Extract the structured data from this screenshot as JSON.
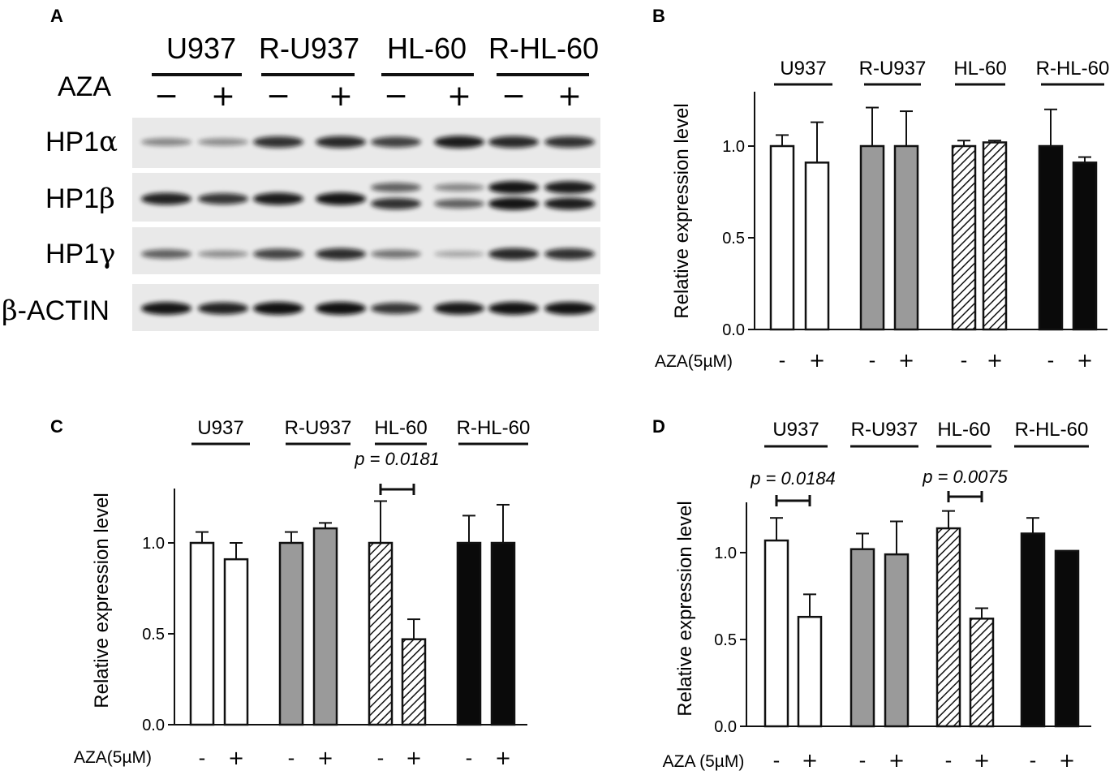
{
  "panel_letters": [
    "A",
    "B",
    "C",
    "D"
  ],
  "blot": {
    "groups": [
      "U937",
      "R-U937",
      "HL-60",
      "R-HL-60"
    ],
    "treatment_label": "AZA",
    "signs": [
      "−",
      "+",
      "−",
      "+",
      "−",
      "+",
      "−",
      "+"
    ],
    "rows": [
      {
        "label_base": "HP1",
        "label_greek": "α",
        "intensities": [
          [
            0.35
          ],
          [
            0.32
          ],
          [
            0.8
          ],
          [
            0.85
          ],
          [
            0.72
          ],
          [
            0.92
          ],
          [
            0.85
          ],
          [
            0.8
          ]
        ]
      },
      {
        "label_base": "HP1",
        "label_greek": "β",
        "intensities": [
          [
            0.88
          ],
          [
            0.78
          ],
          [
            0.92
          ],
          [
            0.95
          ],
          [
            0.55,
            0.8
          ],
          [
            0.35,
            0.55
          ],
          [
            0.95,
            0.95
          ],
          [
            0.92,
            0.9
          ]
        ]
      },
      {
        "label_base": "HP1",
        "label_greek": "γ",
        "intensities": [
          [
            0.55
          ],
          [
            0.3
          ],
          [
            0.7
          ],
          [
            0.82
          ],
          [
            0.45
          ],
          [
            0.18
          ],
          [
            0.85
          ],
          [
            0.8
          ]
        ]
      },
      {
        "label_base": "-ACTIN",
        "label_greek": "β",
        "intensities": [
          [
            0.95
          ],
          [
            0.88
          ],
          [
            0.98
          ],
          [
            0.98
          ],
          [
            0.78
          ],
          [
            0.93
          ],
          [
            0.97
          ],
          [
            0.96
          ]
        ]
      }
    ]
  },
  "chart_data": [
    {
      "panel": "B",
      "type": "bar",
      "ylabel": "Relative expression level",
      "ylim": [
        0,
        1.3
      ],
      "yticks": [
        "0.0",
        "0.5",
        "1.0"
      ],
      "groups": [
        "U937",
        "R-U937",
        "HL-60",
        "R-HL-60"
      ],
      "treatment_label": "AZA(5µM)",
      "treatment_signs": [
        "-",
        "+",
        "-",
        "+",
        "-",
        "+",
        "-",
        "+"
      ],
      "values": [
        1.0,
        0.91,
        1.0,
        1.0,
        1.0,
        1.02,
        1.0,
        0.91
      ],
      "errors": [
        0.06,
        0.22,
        0.21,
        0.19,
        0.03,
        0.01,
        0.2,
        0.03
      ],
      "fills": [
        "white",
        "white",
        "gray",
        "gray",
        "hatch",
        "hatch",
        "black",
        "black"
      ],
      "annotations": []
    },
    {
      "panel": "C",
      "type": "bar",
      "ylabel": "Relative expression level",
      "ylim": [
        0,
        1.3
      ],
      "yticks": [
        "0.0",
        "0.5",
        "1.0"
      ],
      "groups": [
        "U937",
        "R-U937",
        "HL-60",
        "R-HL-60"
      ],
      "treatment_label": "AZA(5µM)",
      "treatment_signs": [
        "-",
        "+",
        "-",
        "+",
        "-",
        "+",
        "-",
        "+"
      ],
      "values": [
        1.0,
        0.91,
        1.0,
        1.08,
        1.0,
        0.47,
        1.0,
        1.0
      ],
      "errors": [
        0.06,
        0.09,
        0.06,
        0.03,
        0.23,
        0.11,
        0.15,
        0.21
      ],
      "fills": [
        "white",
        "white",
        "gray",
        "gray",
        "hatch",
        "hatch",
        "black",
        "black"
      ],
      "annotations": [
        {
          "text": "p = 0.0181",
          "bars": [
            4,
            5
          ]
        }
      ]
    },
    {
      "panel": "D",
      "type": "bar",
      "ylabel": "Relative expression level",
      "ylim": [
        0,
        1.3
      ],
      "yticks": [
        "0.0",
        "0.5",
        "1.0"
      ],
      "groups": [
        "U937",
        "R-U937",
        "HL-60",
        "R-HL-60"
      ],
      "treatment_label": "AZA (5µM)",
      "treatment_signs": [
        "-",
        "+",
        "-",
        "+",
        "-",
        "+",
        "-",
        "+"
      ],
      "values": [
        1.07,
        0.63,
        1.02,
        0.99,
        1.14,
        0.62,
        1.11,
        1.01
      ],
      "errors": [
        0.13,
        0.13,
        0.09,
        0.19,
        0.1,
        0.06,
        0.09,
        0.0
      ],
      "fills": [
        "white",
        "white",
        "gray",
        "gray",
        "hatch",
        "hatch",
        "black",
        "black"
      ],
      "annotations": [
        {
          "text": "p = 0.0184",
          "bars": [
            0,
            1
          ]
        },
        {
          "text": "p = 0.0075",
          "bars": [
            4,
            5
          ]
        }
      ]
    }
  ]
}
